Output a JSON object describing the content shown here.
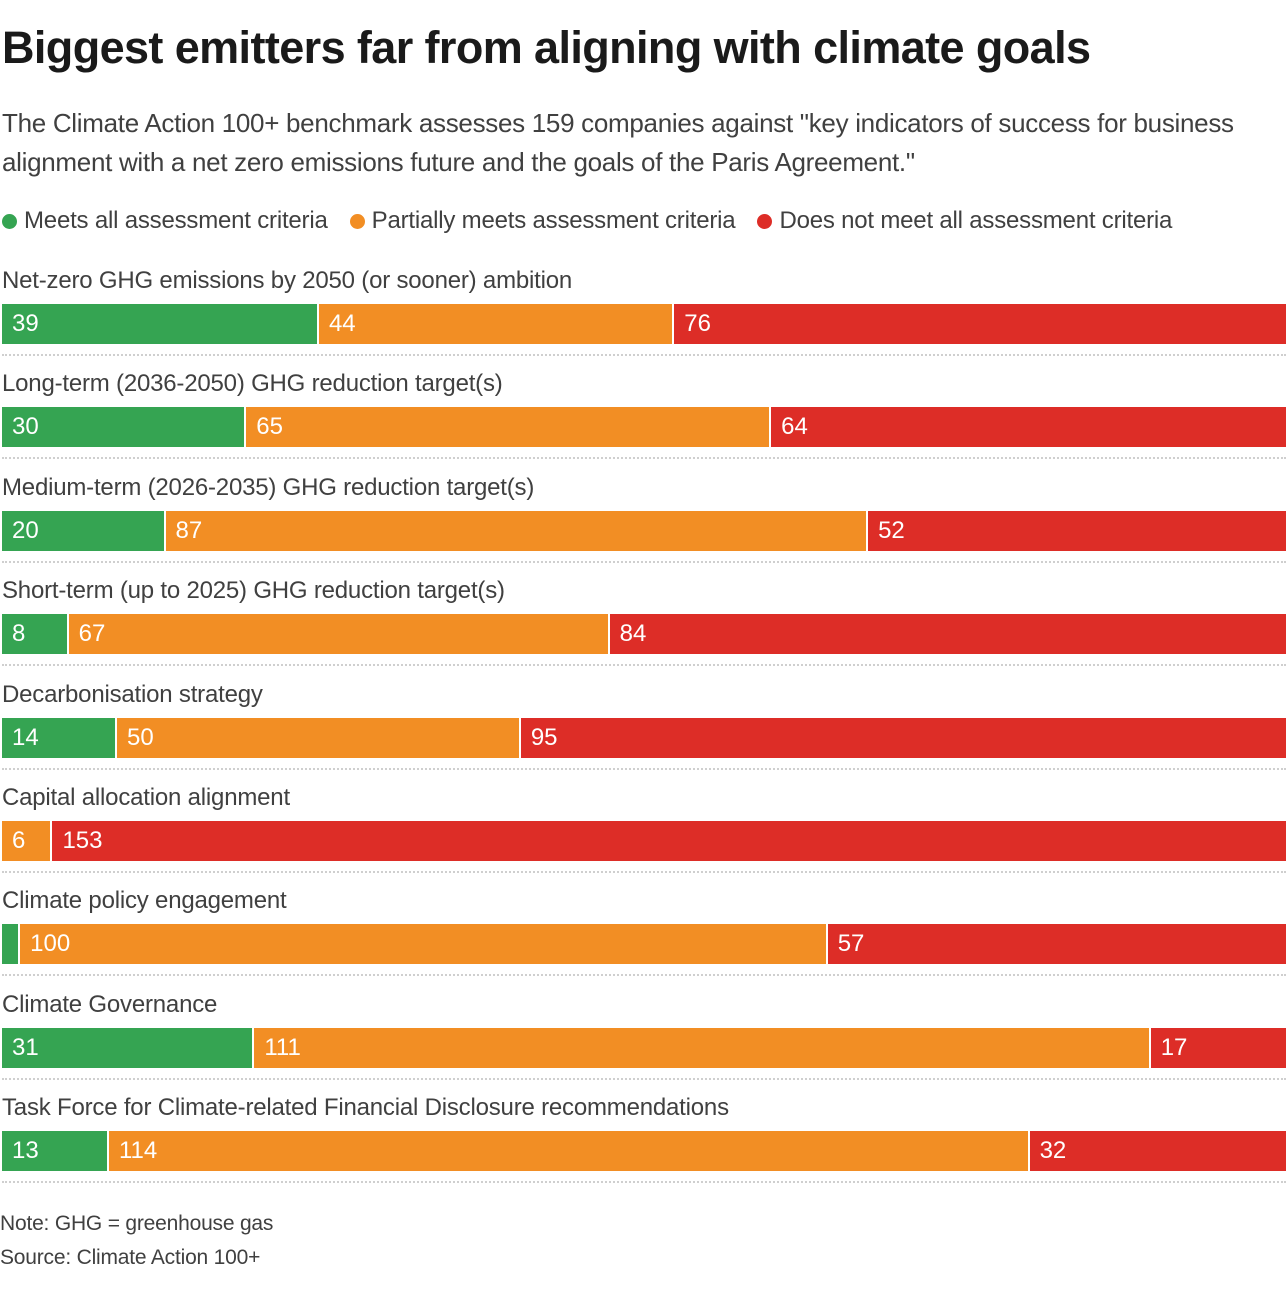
{
  "title": "Biggest emitters far from aligning with climate goals",
  "subtitle": "The Climate Action 100+ benchmark assesses 159 companies against \"key indicators of success for business alignment with a net zero emissions future and the goals of the Paris Agreement.\"",
  "legend": [
    {
      "label": "Meets all assessment criteria",
      "color": "#35a452"
    },
    {
      "label": "Partially meets assessment criteria",
      "color": "#f28e24"
    },
    {
      "label": "Does not meet all assessment criteria",
      "color": "#dd2d27"
    }
  ],
  "note": "Note: GHG = greenhouse gas",
  "source": "Source: Climate Action 100+",
  "chart_data": {
    "type": "bar",
    "orientation": "horizontal",
    "stacked": true,
    "total": 159,
    "categories": [
      "Net-zero GHG emissions by 2050 (or sooner) ambition",
      "Long-term (2036-2050) GHG reduction target(s)",
      "Medium-term (2026-2035) GHG reduction target(s)",
      "Short-term (up to 2025) GHG reduction target(s)",
      "Decarbonisation strategy",
      "Capital allocation alignment",
      "Climate policy engagement",
      "Climate Governance",
      "Task Force for Climate-related Financial Disclosure recommendations"
    ],
    "series": [
      {
        "name": "Meets all assessment criteria",
        "color": "#35a452",
        "values": [
          39,
          30,
          20,
          8,
          14,
          0,
          2,
          31,
          13
        ]
      },
      {
        "name": "Partially meets assessment criteria",
        "color": "#f28e24",
        "values": [
          44,
          65,
          87,
          67,
          50,
          6,
          100,
          111,
          114
        ]
      },
      {
        "name": "Does not meet all assessment criteria",
        "color": "#dd2d27",
        "values": [
          76,
          64,
          52,
          84,
          95,
          153,
          57,
          17,
          32
        ]
      }
    ],
    "data_labels_shown": [
      [
        true,
        true,
        true
      ],
      [
        true,
        true,
        true
      ],
      [
        true,
        true,
        true
      ],
      [
        true,
        true,
        true
      ],
      [
        true,
        true,
        true
      ],
      [
        false,
        true,
        true
      ],
      [
        false,
        true,
        true
      ],
      [
        true,
        true,
        true
      ],
      [
        true,
        true,
        true
      ]
    ],
    "legend_position": "top-left",
    "grid": false
  }
}
